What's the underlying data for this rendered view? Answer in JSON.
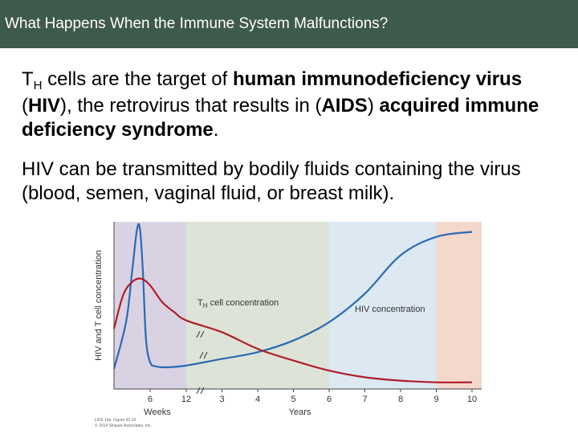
{
  "header": {
    "title": "What Happens When the Immune System Malfunctions?"
  },
  "paragraph1": {
    "t_main": "T",
    "t_sub": "H",
    "part1": " cells are the target of ",
    "bold1": "human immunodeficiency virus",
    "part2": " (",
    "bold2": "HIV",
    "part3": "), the retrovirus that results in (",
    "bold3": "AIDS",
    "part4": ") ",
    "bold4": "acquired immune deficiency syndrome",
    "part5": "."
  },
  "paragraph2": {
    "text": "HIV can be transmitted by bodily fluids containing the virus (blood, semen, vaginal fluid, or breast milk)."
  },
  "colors": {
    "title_bar": "#3e5a4a",
    "hiv_line": "#2a6ab3",
    "tcell_line": "#b01e2a",
    "stage1": "#d9d2e3",
    "stage2": "#dde3d7",
    "stage3": "#dce8f2",
    "stage4": "#f4d7cd"
  },
  "chart_data": {
    "type": "line",
    "ylabel": "HIV and T cell concentration",
    "xlabel_weeks": "Weeks",
    "xlabel_years": "Years",
    "x_ticks": [
      "6",
      "12",
      "3",
      "4",
      "5",
      "6",
      "7",
      "8",
      "9",
      "10"
    ],
    "x_positions": [
      6,
      12,
      3,
      4,
      5,
      6,
      7,
      8,
      9,
      10
    ],
    "label_tcell_main": "T",
    "label_tcell_sub": "H",
    "label_tcell_rest": " cell concentration",
    "label_hiv": "HIV concentration",
    "footnote_line1": "LIFE 10e, Figure 42.19",
    "footnote_line2": "© 2014 Sinauer Associates, Inc.",
    "y_scale": "relative (0-100)",
    "series": [
      {
        "name": "HIV concentration",
        "points": [
          [
            0,
            12
          ],
          [
            2,
            40
          ],
          [
            3,
            70
          ],
          [
            3.8,
            95
          ],
          [
            4.3,
            96
          ],
          [
            4.8,
            70
          ],
          [
            5.3,
            30
          ],
          [
            6,
            16
          ],
          [
            7,
            13.5
          ],
          [
            9,
            13
          ],
          [
            12,
            14
          ],
          [
            3,
            18
          ],
          [
            4,
            22
          ],
          [
            5,
            29
          ],
          [
            6,
            40
          ],
          [
            7,
            57
          ],
          [
            8,
            80
          ],
          [
            9,
            91
          ],
          [
            10,
            94
          ]
        ]
      },
      {
        "name": "TH cell concentration",
        "points": [
          [
            0,
            36
          ],
          [
            1.5,
            56
          ],
          [
            3,
            64
          ],
          [
            4.5,
            66
          ],
          [
            6,
            62
          ],
          [
            8,
            52
          ],
          [
            10,
            46
          ],
          [
            12,
            41
          ],
          [
            3,
            34
          ],
          [
            4,
            24
          ],
          [
            5,
            17
          ],
          [
            6,
            11
          ],
          [
            7,
            7
          ],
          [
            8,
            5
          ],
          [
            9,
            4
          ],
          [
            10,
            4
          ]
        ]
      }
    ]
  }
}
